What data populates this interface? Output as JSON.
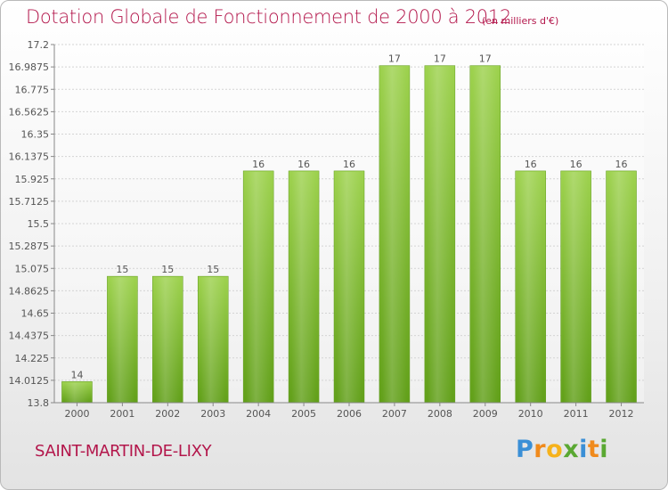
{
  "chart_data": {
    "type": "bar",
    "title": "Dotation Globale de Fonctionnement de 2000 à 2012",
    "subtitle": "(en milliers d'€)",
    "categories": [
      "2000",
      "2001",
      "2002",
      "2003",
      "2004",
      "2005",
      "2006",
      "2007",
      "2008",
      "2009",
      "2010",
      "2011",
      "2012"
    ],
    "values": [
      14,
      15,
      15,
      15,
      16,
      16,
      16,
      17,
      17,
      17,
      16,
      16,
      16
    ],
    "value_labels": [
      "14",
      "15",
      "15",
      "15",
      "16",
      "16",
      "16",
      "17",
      "17",
      "17",
      "16",
      "16",
      "16"
    ],
    "bar_tops": [
      14.0,
      15.0,
      15.0,
      15.0,
      16.0,
      16.0,
      16.0,
      17.0,
      17.0,
      17.0,
      16.0,
      16.0,
      16.0
    ],
    "yticks": [
      "17.2",
      "16.9875",
      "16.775",
      "16.5625",
      "16.35",
      "16.1375",
      "15.925",
      "15.7125",
      "15.5",
      "15.2875",
      "15.075",
      "14.8625",
      "14.65",
      "14.4375",
      "14.225",
      "14.0125",
      "13.8"
    ],
    "ylim": [
      13.8,
      17.2
    ],
    "xlabel": "",
    "ylabel": "",
    "grid": true,
    "bar_color": "#8bc43f"
  },
  "commune": "SAINT-MARTIN-DE-LIXY",
  "logo": {
    "letters": [
      "P",
      "r",
      "o",
      "x",
      "i",
      "t",
      "i"
    ],
    "colors": [
      "#3a8fd6",
      "#f08a1c",
      "#f6b21b",
      "#5aa832",
      "#3a8fd6",
      "#f08a1c",
      "#5aa832"
    ]
  }
}
